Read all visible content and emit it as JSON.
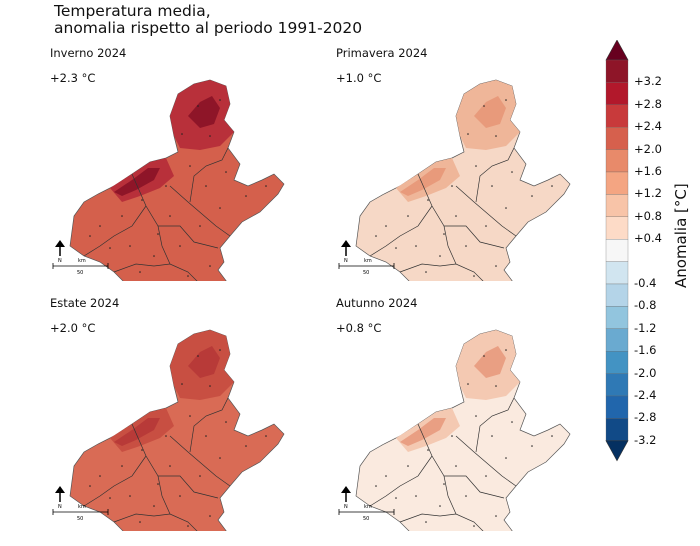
{
  "title_line1": "Temperatura media,",
  "title_line2": "anomalia rispetto al periodo 1991-2020",
  "panels": [
    {
      "season": "Inverno 2024",
      "anomaly": "+2.3 °C",
      "base": "#d4604c",
      "hot": "#b8303a",
      "hotter": "#8e1528"
    },
    {
      "season": "Primavera 2024",
      "anomaly": "+1.0 °C",
      "base": "#f6d8c6",
      "hot": "#efb699",
      "hotter": "#e89a7b"
    },
    {
      "season": "Estate 2024",
      "anomaly": "+2.0 °C",
      "base": "#d96b55",
      "hot": "#c84f42",
      "hotter": "#b83a38"
    },
    {
      "season": "Autunno 2024",
      "anomaly": "+0.8 °C",
      "base": "#faeadf",
      "hot": "#f4c9b2",
      "hotter": "#e99f83"
    }
  ],
  "scale": {
    "north": "N",
    "unit": "km",
    "distance": "50"
  },
  "colorbar": {
    "title": "Anomalia [°C]",
    "labels": [
      "+3.2",
      "+2.8",
      "+2.4",
      "+2.0",
      "+1.6",
      "+1.2",
      "+0.8",
      "+0.4",
      "-0.4",
      "-0.8",
      "-1.2",
      "-1.6",
      "-2.0",
      "-2.4",
      "-2.8",
      "-3.2"
    ],
    "colors_top_to_bottom": [
      "#67001f",
      "#8e1528",
      "#b2182b",
      "#c83a3b",
      "#d6604d",
      "#e88a6a",
      "#f4a582",
      "#f8c4a8",
      "#fddbc7",
      "#f7f7f7",
      "#d1e5f0",
      "#b4d4e8",
      "#92c5de",
      "#6aaad0",
      "#4393c3",
      "#2f79b5",
      "#2166ac",
      "#114a87",
      "#053061"
    ]
  }
}
